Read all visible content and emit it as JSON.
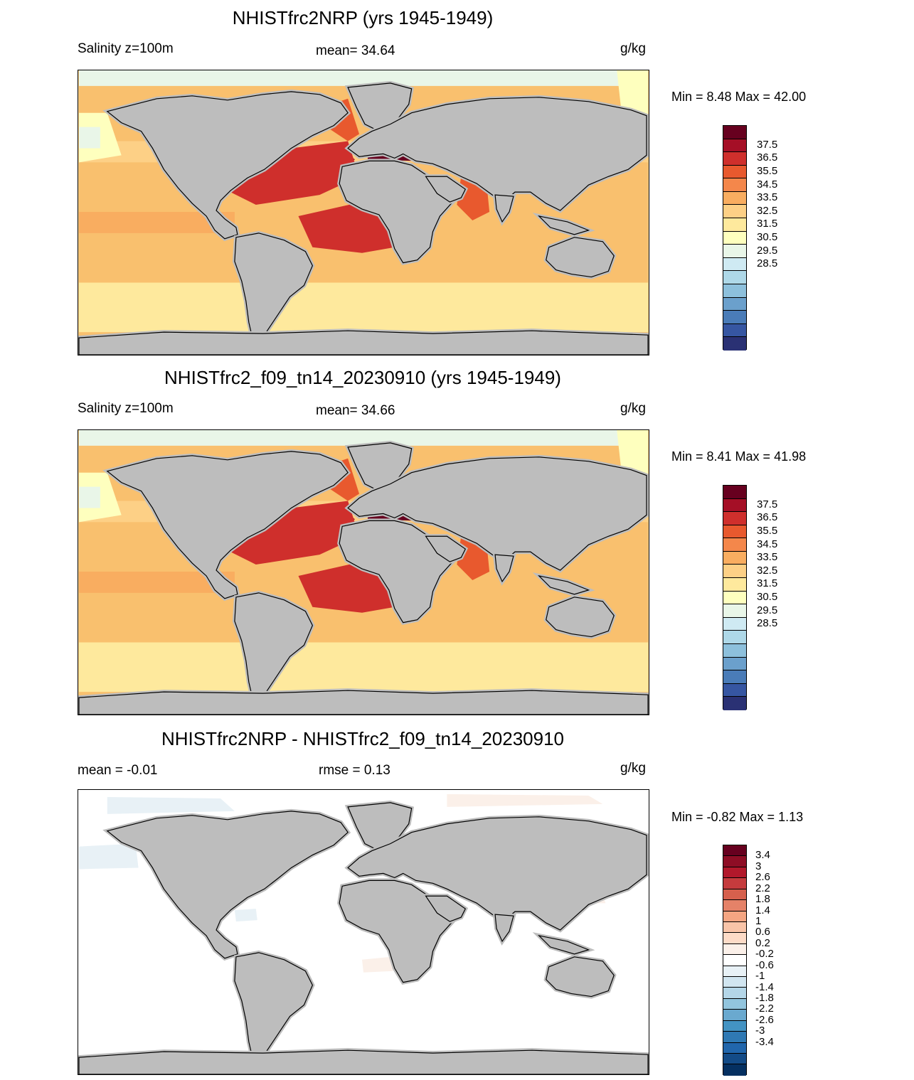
{
  "panels": [
    {
      "title": "NHISTfrc2NRP (yrs 1945-1949)",
      "left_label": "Salinity z=100m",
      "center_label": "mean=  34.64",
      "units": "g/kg",
      "minmax": "Min =   8.48 Max =  42.00",
      "style": "abs"
    },
    {
      "title": "NHISTfrc2_f09_tn14_20230910 (yrs 1945-1949)",
      "left_label": "Salinity z=100m",
      "center_label": "mean=  34.66",
      "units": "g/kg",
      "minmax": "Min =   8.41 Max =  41.98",
      "style": "abs"
    },
    {
      "title": "NHISTfrc2NRP - NHISTfrc2_f09_tn14_20230910",
      "left_label": "mean =  -0.01",
      "center_label": "rmse =   0.13",
      "units": "g/kg",
      "minmax": "Min =  -0.82 Max =   1.13",
      "style": "diff"
    }
  ],
  "colorbar_abs": {
    "labels": [
      "37.5",
      "36.5",
      "35.5",
      "34.5",
      "33.5",
      "32.5",
      "31.5",
      "30.5",
      "29.5",
      "28.5"
    ],
    "colors": [
      "#67001f",
      "#a50f26",
      "#cf2f2c",
      "#e8592e",
      "#f4874b",
      "#f9ad60",
      "#fdd086",
      "#fee99d",
      "#feffbe",
      "#e9f6e8",
      "#cfeaf3",
      "#aed8e8",
      "#8dc0dc",
      "#6ba0cc",
      "#4a7cb8",
      "#3656a2",
      "#2a3174"
    ]
  },
  "colorbar_diff": {
    "labels": [
      "3.4",
      "3",
      "2.6",
      "2.2",
      "1.8",
      "1.4",
      "1",
      "0.6",
      "0.2",
      "-0.2",
      "-0.6",
      "-1",
      "-1.4",
      "-1.8",
      "-2.2",
      "-2.6",
      "-3",
      "-3.4"
    ],
    "colors": [
      "#67001f",
      "#8e0d25",
      "#b2182b",
      "#c53b3d",
      "#d6604d",
      "#e58268",
      "#f4a582",
      "#f9c4a8",
      "#fddbc7",
      "#fbf0e9",
      "#ffffff",
      "#e8f1f6",
      "#d1e5f0",
      "#b4d6e8",
      "#92c5de",
      "#6aa9cf",
      "#4393c3",
      "#2f79b4",
      "#2166ac",
      "#134b87",
      "#053061"
    ]
  }
}
